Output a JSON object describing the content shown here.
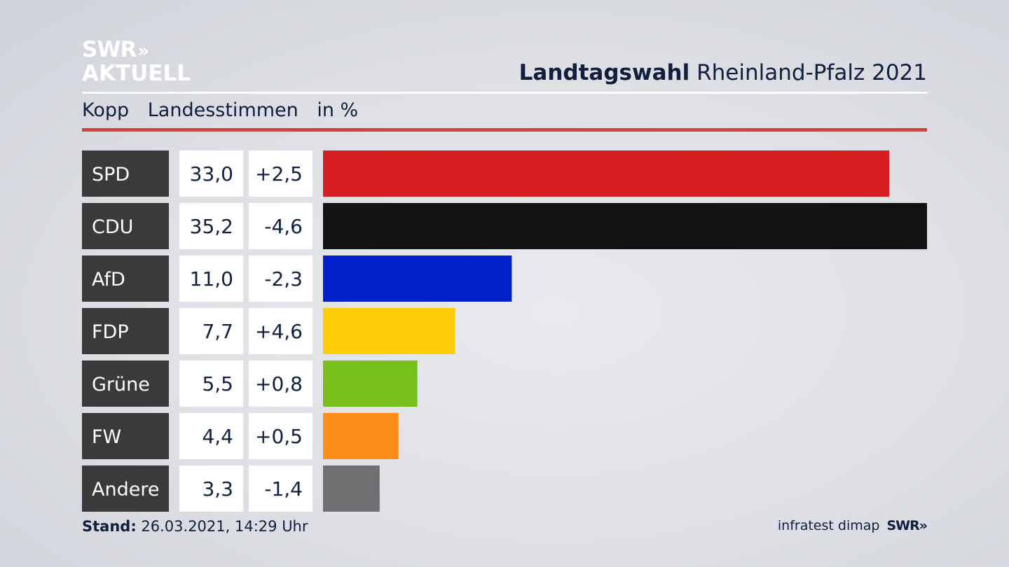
{
  "branding": {
    "logo_line1": "SWR",
    "logo_line1_chevron": "»",
    "logo_line2": "AKTUELL",
    "footer_logo": "SWR",
    "footer_logo_chevron": "»"
  },
  "header": {
    "title_bold": "Landtagswahl",
    "title_rest": "Rheinland-Pfalz 2021",
    "subtitle_region": "Kopp",
    "subtitle_metric": "Landesstimmen",
    "subtitle_unit": "in %"
  },
  "footer": {
    "stand_label": "Stand:",
    "stand_value": "26.03.2021, 14:29 Uhr",
    "source": "infratest dimap"
  },
  "chart_data": {
    "type": "bar",
    "orientation": "horizontal",
    "categories": [
      "SPD",
      "CDU",
      "AfD",
      "FDP",
      "Grüne",
      "FW",
      "Andere"
    ],
    "values": [
      33.0,
      35.2,
      11.0,
      7.7,
      5.5,
      4.4,
      3.3
    ],
    "value_labels": [
      "33,0",
      "35,2",
      "11,0",
      "7,7",
      "5,5",
      "4,4",
      "3,3"
    ],
    "diff_labels": [
      "+2,5",
      "-4,6",
      "-2,3",
      "+4,6",
      "+0,8",
      "+0,5",
      "-1,4"
    ],
    "colors": [
      "#d71f21",
      "#121212",
      "#0021c7",
      "#ffcc0a",
      "#78be1d",
      "#ff8e18",
      "#707072"
    ],
    "xlim": [
      0,
      35.2
    ],
    "grid": false
  }
}
